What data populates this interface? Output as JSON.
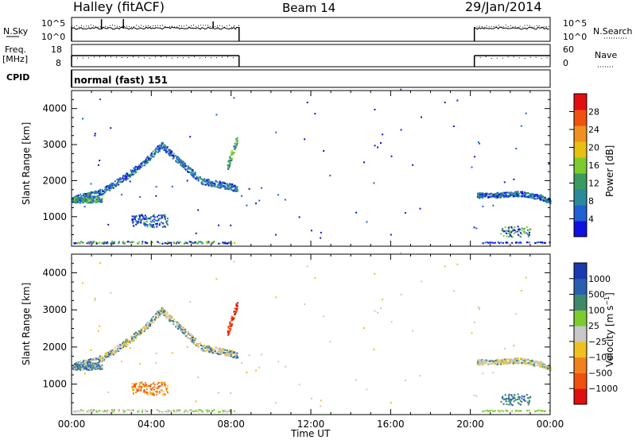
{
  "header": {
    "station": "Halley (fitACF)",
    "beam": "Beam 14",
    "date": "29/Jan/2014"
  },
  "left_labels": {
    "nsky": "N.Sky",
    "freq": "Freq.",
    "freq_unit": "[MHz]",
    "cpid": "CPID"
  },
  "right_labels": {
    "nsearch": "N.Search",
    "nave": "Nave"
  },
  "cpid_text": "normal (fast) 151",
  "noise_panel": {
    "left_ticks": [
      "10^5",
      "10^0"
    ],
    "right_ticks": [
      "10^5",
      "10^0"
    ]
  },
  "freq_panel": {
    "left_ticks": [
      "18",
      "8"
    ],
    "right_ticks": [
      "60",
      "0"
    ],
    "level_mhz": 11
  },
  "chart_data": [
    {
      "type": "heatmap",
      "title": "",
      "xlabel": "Time UT",
      "ylabel": "Slant Range [km]",
      "x_ticks": [
        "00:00",
        "04:00",
        "08:00",
        "12:00",
        "16:00",
        "20:00",
        "00:00"
      ],
      "x_range_hours": [
        0,
        24
      ],
      "y_ticks": [
        "1000",
        "2000",
        "3000",
        "4000"
      ],
      "y_range_km": [
        180,
        4500
      ],
      "colorbar": {
        "label": "Power [dB]",
        "ticks": [
          "4",
          "8",
          "12",
          "16",
          "20",
          "24",
          "28"
        ],
        "range": [
          0,
          32
        ],
        "colors": [
          "#1010e0",
          "#2060d0",
          "#2a8a9a",
          "#3a9a60",
          "#7ccc30",
          "#e8c010",
          "#f09020",
          "#f05010",
          "#e01010"
        ]
      },
      "data_coverage_hours": [
        [
          0,
          8.4
        ],
        [
          20.2,
          24
        ]
      ],
      "scatter_bands": [
        {
          "name": "main-arc",
          "points": [
            [
              0,
              1500
            ],
            [
              1.5,
              1700
            ],
            [
              2.5,
              2050
            ],
            [
              3.5,
              2450
            ],
            [
              4.5,
              3000
            ],
            [
              5.5,
              2500
            ],
            [
              6.5,
              2000
            ],
            [
              7.5,
              1900
            ],
            [
              8.3,
              1800
            ]
          ]
        },
        {
          "name": "late-band",
          "points": [
            [
              20.3,
              1600
            ],
            [
              21.5,
              1620
            ],
            [
              22.5,
              1650
            ],
            [
              23.5,
              1550
            ],
            [
              24,
              1450
            ]
          ]
        },
        {
          "name": "near-range",
          "points": [
            [
              0,
              300
            ],
            [
              4,
              300
            ],
            [
              8.3,
              300
            ],
            [
              20.5,
              300
            ],
            [
              24,
              300
            ]
          ]
        }
      ]
    },
    {
      "type": "heatmap",
      "title": "",
      "xlabel": "Time UT",
      "ylabel": "Slant Range [km]",
      "x_ticks": [
        "00:00",
        "04:00",
        "08:00",
        "12:00",
        "16:00",
        "20:00",
        "00:00"
      ],
      "x_range_hours": [
        0,
        24
      ],
      "y_ticks": [
        "1000",
        "2000",
        "3000",
        "4000"
      ],
      "y_range_km": [
        180,
        4500
      ],
      "colorbar": {
        "label": "Velocity [m s^-1]",
        "ticks": [
          "1000",
          "500",
          "100",
          "25",
          "−25",
          "−100",
          "−500",
          "−1000"
        ],
        "colors": [
          "#1a3ab0",
          "#2a5fb0",
          "#3c8a6a",
          "#7ccc30",
          "#c8c8c8",
          "#f0c020",
          "#f08020",
          "#f05010",
          "#e01010"
        ]
      },
      "data_coverage_hours": [
        [
          0,
          8.4
        ],
        [
          20.2,
          24
        ]
      ]
    }
  ]
}
